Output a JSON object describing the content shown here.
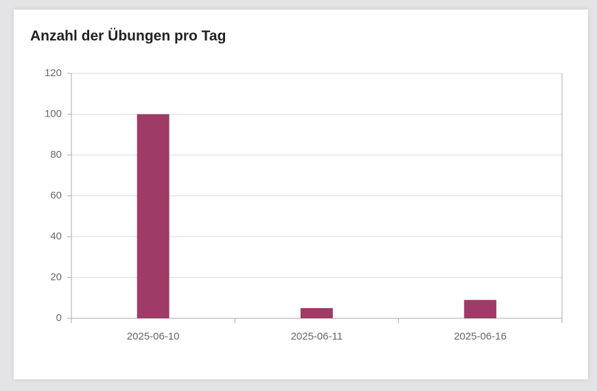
{
  "chart_data": {
    "type": "bar",
    "title": "Anzahl der Übungen pro Tag",
    "categories": [
      "2025-06-10",
      "2025-06-11",
      "2025-06-16"
    ],
    "values": [
      100,
      5,
      9
    ],
    "color": "#9e3b66",
    "ylim": [
      0,
      120
    ],
    "yticks": [
      0,
      20,
      40,
      60,
      80,
      100,
      120
    ],
    "grid": true
  }
}
